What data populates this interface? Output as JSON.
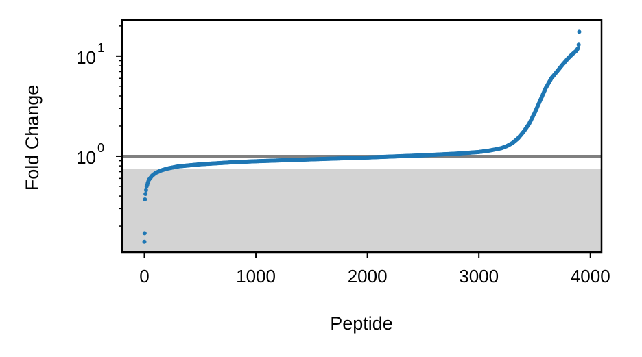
{
  "chart_data": {
    "type": "scatter",
    "xlabel": "Peptide",
    "ylabel": "Fold Change",
    "yscale": "log",
    "xlim": [
      -200,
      4100
    ],
    "ylim": [
      0.11,
      23
    ],
    "xticks": [
      0,
      1000,
      2000,
      3000,
      4000
    ],
    "xtick_labels": [
      "0",
      "1000",
      "2000",
      "3000",
      "4000"
    ],
    "yticks": [
      1,
      10
    ],
    "ytick_labels": [
      {
        "base": "10",
        "exp": "0"
      },
      {
        "base": "10",
        "exp": "1"
      }
    ],
    "reference_line": {
      "y": 1.0,
      "color": "#808080"
    },
    "shaded_region": {
      "y_from": 0.11,
      "y_to": 0.75,
      "color": "#d3d3d3"
    },
    "point_color": "#1f77b4",
    "n_points": 3900,
    "outliers": [
      [
        0,
        0.14
      ],
      [
        2,
        0.17
      ]
    ],
    "curve_points": [
      [
        5,
        0.37
      ],
      [
        10,
        0.42
      ],
      [
        20,
        0.5
      ],
      [
        40,
        0.58
      ],
      [
        70,
        0.64
      ],
      [
        100,
        0.68
      ],
      [
        150,
        0.72
      ],
      [
        200,
        0.75
      ],
      [
        300,
        0.79
      ],
      [
        500,
        0.83
      ],
      [
        800,
        0.87
      ],
      [
        1000,
        0.89
      ],
      [
        1500,
        0.93
      ],
      [
        2000,
        0.97
      ],
      [
        2500,
        1.02
      ],
      [
        2800,
        1.06
      ],
      [
        3000,
        1.1
      ],
      [
        3100,
        1.14
      ],
      [
        3200,
        1.2
      ],
      [
        3250,
        1.26
      ],
      [
        3300,
        1.35
      ],
      [
        3350,
        1.5
      ],
      [
        3400,
        1.75
      ],
      [
        3450,
        2.1
      ],
      [
        3500,
        2.7
      ],
      [
        3550,
        3.6
      ],
      [
        3600,
        4.8
      ],
      [
        3650,
        6.0
      ],
      [
        3700,
        7.0
      ],
      [
        3750,
        8.2
      ],
      [
        3800,
        9.5
      ],
      [
        3840,
        10.5
      ],
      [
        3870,
        11.2
      ],
      [
        3890,
        12.0
      ],
      [
        3895,
        13.0
      ],
      [
        3898,
        14.5
      ],
      [
        3900,
        17.5
      ]
    ]
  }
}
